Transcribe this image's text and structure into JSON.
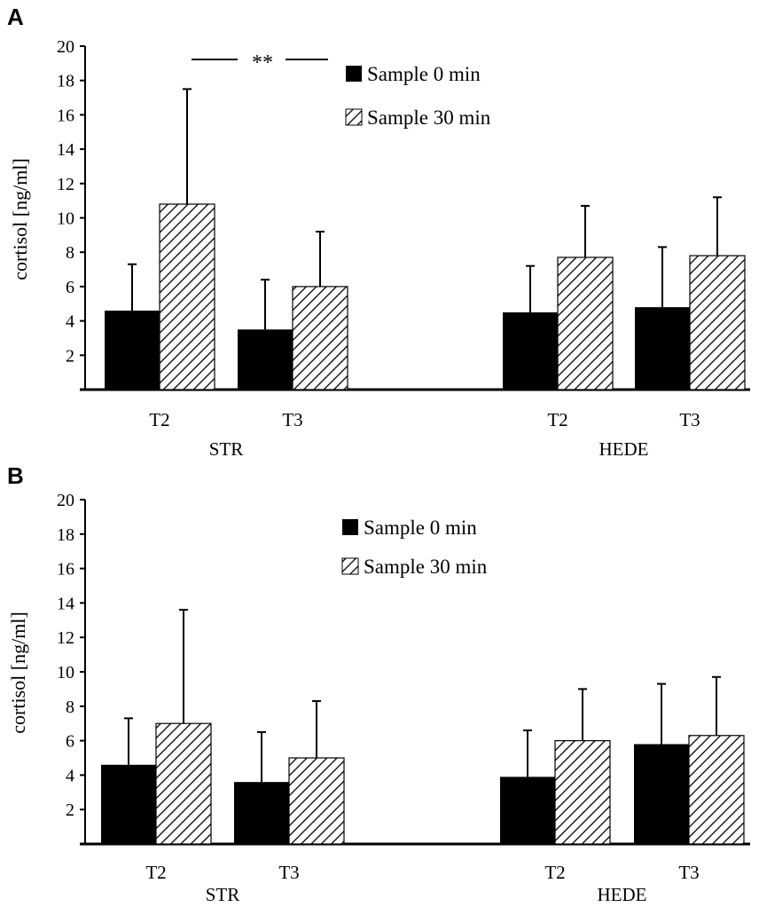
{
  "chart_data": [
    {
      "panel": "A",
      "type": "bar",
      "ylabel": "cortisol [ng/ml]",
      "ylim": [
        0,
        20
      ],
      "yticks": [
        "2",
        "4",
        "6",
        "8",
        "10",
        "12",
        "14",
        "16",
        "18",
        "20"
      ],
      "groups": [
        {
          "label": "STR",
          "categories": [
            "T2",
            "T3"
          ]
        },
        {
          "label": "HEDE",
          "categories": [
            "T2",
            "T3"
          ]
        }
      ],
      "series": [
        {
          "name": "Sample 0 min",
          "fill": "solid",
          "values": [
            4.6,
            3.5,
            4.5,
            4.8
          ],
          "errors": [
            2.7,
            2.9,
            2.7,
            3.5
          ]
        },
        {
          "name": "Sample 30 min",
          "fill": "hatched",
          "values": [
            10.8,
            6.0,
            7.7,
            7.8
          ],
          "errors": [
            6.7,
            3.2,
            3.0,
            3.4
          ]
        }
      ],
      "annotation": "**"
    },
    {
      "panel": "B",
      "type": "bar",
      "ylabel": "cortisol [ng/ml]",
      "ylim": [
        0,
        20
      ],
      "yticks": [
        "2",
        "4",
        "6",
        "8",
        "10",
        "12",
        "14",
        "16",
        "18",
        "20"
      ],
      "groups": [
        {
          "label": "STR",
          "categories": [
            "T2",
            "T3"
          ]
        },
        {
          "label": "HEDE",
          "categories": [
            "T2",
            "T3"
          ]
        }
      ],
      "series": [
        {
          "name": "Sample 0 min",
          "fill": "solid",
          "values": [
            4.6,
            3.6,
            3.9,
            5.8
          ],
          "errors": [
            2.7,
            2.9,
            2.7,
            3.5
          ]
        },
        {
          "name": "Sample 30 min",
          "fill": "hatched",
          "values": [
            7.0,
            5.0,
            6.0,
            6.3
          ],
          "errors": [
            6.6,
            3.3,
            3.0,
            3.4
          ]
        }
      ]
    }
  ],
  "colors": {
    "bar_solid": "#000000",
    "axis": "#000000",
    "background": "#ffffff"
  }
}
